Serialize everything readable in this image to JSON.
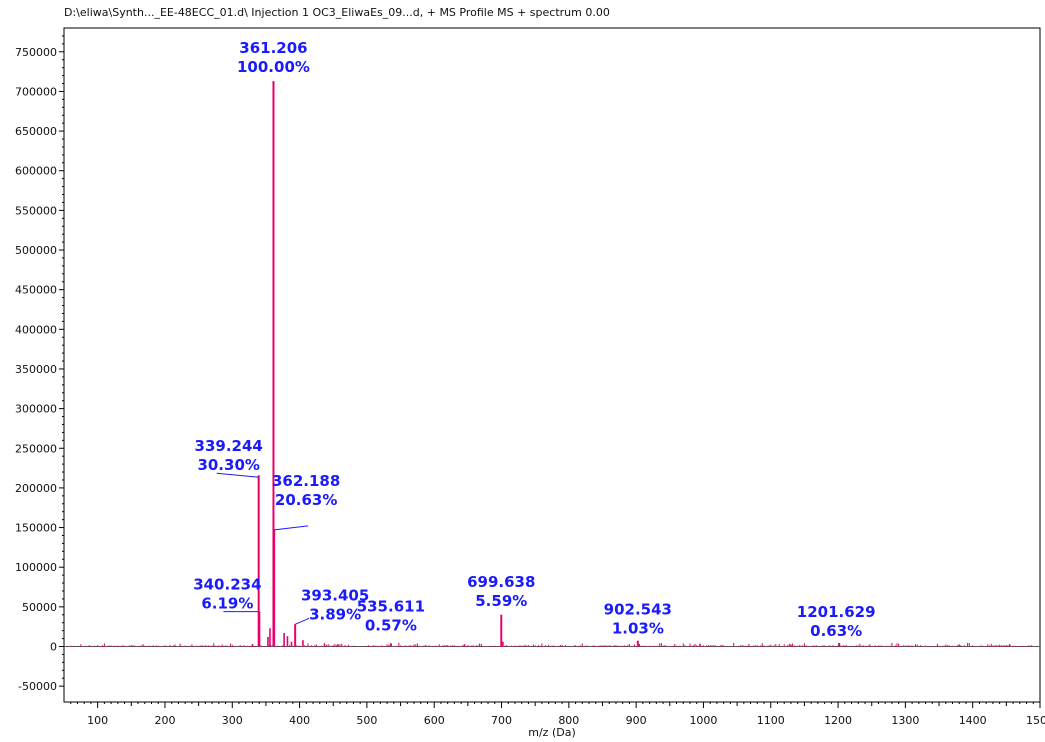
{
  "chart_data": {
    "type": "line",
    "title": "D:\\eliwa\\Synth..._EE-48ECC_01.d\\ Injection 1 OC3_EliwaEs_09...d, + MS Profile MS + spectrum 0.00",
    "xlabel": "m/z (Da)",
    "ylabel": "",
    "xlim": [
      50,
      1500
    ],
    "ylim": [
      -70000,
      780000
    ],
    "x_ticks": [
      100,
      200,
      300,
      400,
      500,
      600,
      700,
      800,
      900,
      1000,
      1100,
      1200,
      1300,
      1400,
      1500
    ],
    "x_tick_labels": [
      "100",
      "200",
      "300",
      "400",
      "500",
      "600",
      "700",
      "800",
      "900",
      "1000",
      "1100",
      "1200",
      "1300",
      "1400",
      "1500"
    ],
    "y_ticks": [
      -50000,
      0,
      50000,
      100000,
      150000,
      200000,
      250000,
      300000,
      350000,
      400000,
      450000,
      500000,
      550000,
      600000,
      650000,
      700000,
      750000
    ],
    "y_tick_labels": [
      "-50000",
      "0",
      "50000",
      "100000",
      "150000",
      "200000",
      "250000",
      "300000",
      "350000",
      "400000",
      "450000",
      "500000",
      "550000",
      "600000",
      "650000",
      "700000",
      "750000"
    ],
    "series_color": "#e8006b",
    "label_color": "#1a1aff",
    "peaks": [
      {
        "mz": 339.244,
        "intensity": 216000,
        "mz_label": "339.244",
        "pct_label": "30.30%"
      },
      {
        "mz": 340.234,
        "intensity": 44000,
        "mz_label": "340.234",
        "pct_label": "6.19%"
      },
      {
        "mz": 361.206,
        "intensity": 713000,
        "mz_label": "361.206",
        "pct_label": "100.00%"
      },
      {
        "mz": 362.188,
        "intensity": 147000,
        "mz_label": "362.188",
        "pct_label": "20.63%"
      },
      {
        "mz": 393.405,
        "intensity": 28000,
        "mz_label": "393.405",
        "pct_label": "3.89%"
      },
      {
        "mz": 535.611,
        "intensity": 4000,
        "mz_label": "535.611",
        "pct_label": "0.57%"
      },
      {
        "mz": 699.638,
        "intensity": 40000,
        "mz_label": "699.638",
        "pct_label": "5.59%"
      },
      {
        "mz": 902.543,
        "intensity": 7300,
        "mz_label": "902.543",
        "pct_label": "1.03%"
      },
      {
        "mz": 1201.629,
        "intensity": 4500,
        "mz_label": "1201.629",
        "pct_label": "0.63%"
      }
    ],
    "minor_peaks": [
      {
        "mz": 353,
        "intensity": 12000
      },
      {
        "mz": 356,
        "intensity": 23000
      },
      {
        "mz": 377,
        "intensity": 17000
      },
      {
        "mz": 382,
        "intensity": 13000
      },
      {
        "mz": 388,
        "intensity": 6000
      },
      {
        "mz": 405,
        "intensity": 8000
      },
      {
        "mz": 330,
        "intensity": 3000
      },
      {
        "mz": 437,
        "intensity": 4000
      },
      {
        "mz": 457,
        "intensity": 3000
      },
      {
        "mz": 645,
        "intensity": 3000
      },
      {
        "mz": 702,
        "intensity": 6000
      },
      {
        "mz": 995,
        "intensity": 3500
      },
      {
        "mz": 1130,
        "intensity": 2500
      },
      {
        "mz": 1380,
        "intensity": 2500
      },
      {
        "mz": 1455,
        "intensity": 2000
      }
    ]
  }
}
